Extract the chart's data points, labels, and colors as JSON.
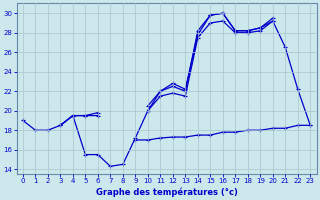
{
  "xlabel": "Graphe des températures (°c)",
  "bg_color": "#cce8ec",
  "grid_color": "#aac4cc",
  "line_color": "#0000cc",
  "ylim": [
    13.5,
    31
  ],
  "xlim": [
    -0.5,
    23.5
  ],
  "yticks": [
    14,
    16,
    18,
    20,
    22,
    24,
    26,
    28,
    30
  ],
  "xticks": [
    0,
    1,
    2,
    3,
    4,
    5,
    6,
    7,
    8,
    9,
    10,
    11,
    12,
    13,
    14,
    15,
    16,
    17,
    18,
    19,
    20,
    21,
    22,
    23
  ],
  "series1_y": [
    19.0,
    18.0,
    18.0,
    18.5,
    19.5,
    15.5,
    15.5,
    14.3,
    14.5,
    17.2,
    20.0,
    22.0,
    22.8,
    22.2,
    27.8,
    29.8,
    30.0,
    28.2,
    28.2,
    28.5,
    29.2,
    26.5,
    22.2,
    18.5
  ],
  "series2_y": [
    null,
    null,
    null,
    18.5,
    19.5,
    19.5,
    19.5,
    null,
    null,
    null,
    20.5,
    22.0,
    22.5,
    22.0,
    28.2,
    29.8,
    30.0,
    28.2,
    28.2,
    28.5,
    29.5,
    null,
    null,
    null
  ],
  "series3_y": [
    null,
    null,
    null,
    18.5,
    19.5,
    19.5,
    19.8,
    null,
    null,
    null,
    20.0,
    21.5,
    21.8,
    21.5,
    27.5,
    29.0,
    29.2,
    28.0,
    28.0,
    28.2,
    29.2,
    null,
    null,
    null
  ],
  "series4_y": [
    null,
    null,
    null,
    null,
    null,
    null,
    null,
    null,
    null,
    17.0,
    17.0,
    17.2,
    17.3,
    17.3,
    17.5,
    17.5,
    17.8,
    17.8,
    18.0,
    18.0,
    18.2,
    18.2,
    18.5,
    18.5
  ]
}
